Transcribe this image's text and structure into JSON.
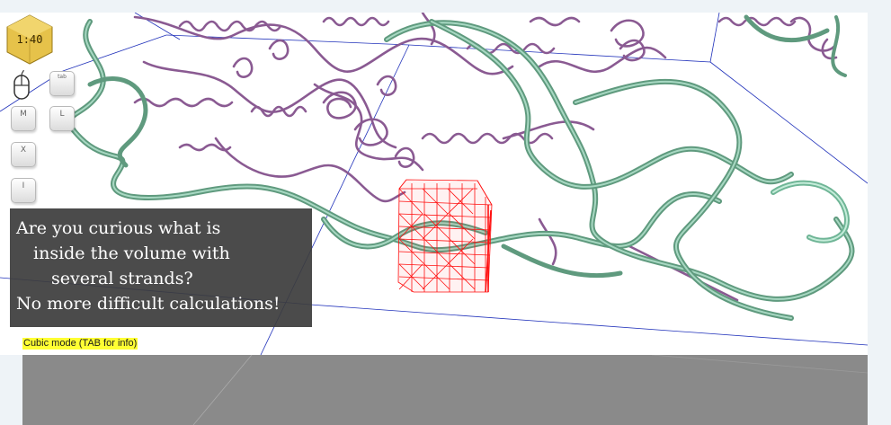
{
  "hud": {
    "scale_badge": "1:40",
    "keys": {
      "tab": "tab",
      "m": "M",
      "l": "L",
      "x": "X",
      "i": "I"
    }
  },
  "info_box": {
    "lines": [
      "Are you curious what is",
      "inside the volume with",
      "several strands?",
      "No more difficult calculations!"
    ]
  },
  "status": {
    "mode_label": "Cubic mode (TAB for info)"
  },
  "colors": {
    "strand_green": "#5f9a7e",
    "strand_green_light": "#9fd8bf",
    "strand_purple": "#8a5a92",
    "cube_red": "#ff0000",
    "bounding_box": "#1c2fb4",
    "badge_gold": "#e6c24a",
    "mode_label_bg": "#ffff33"
  }
}
